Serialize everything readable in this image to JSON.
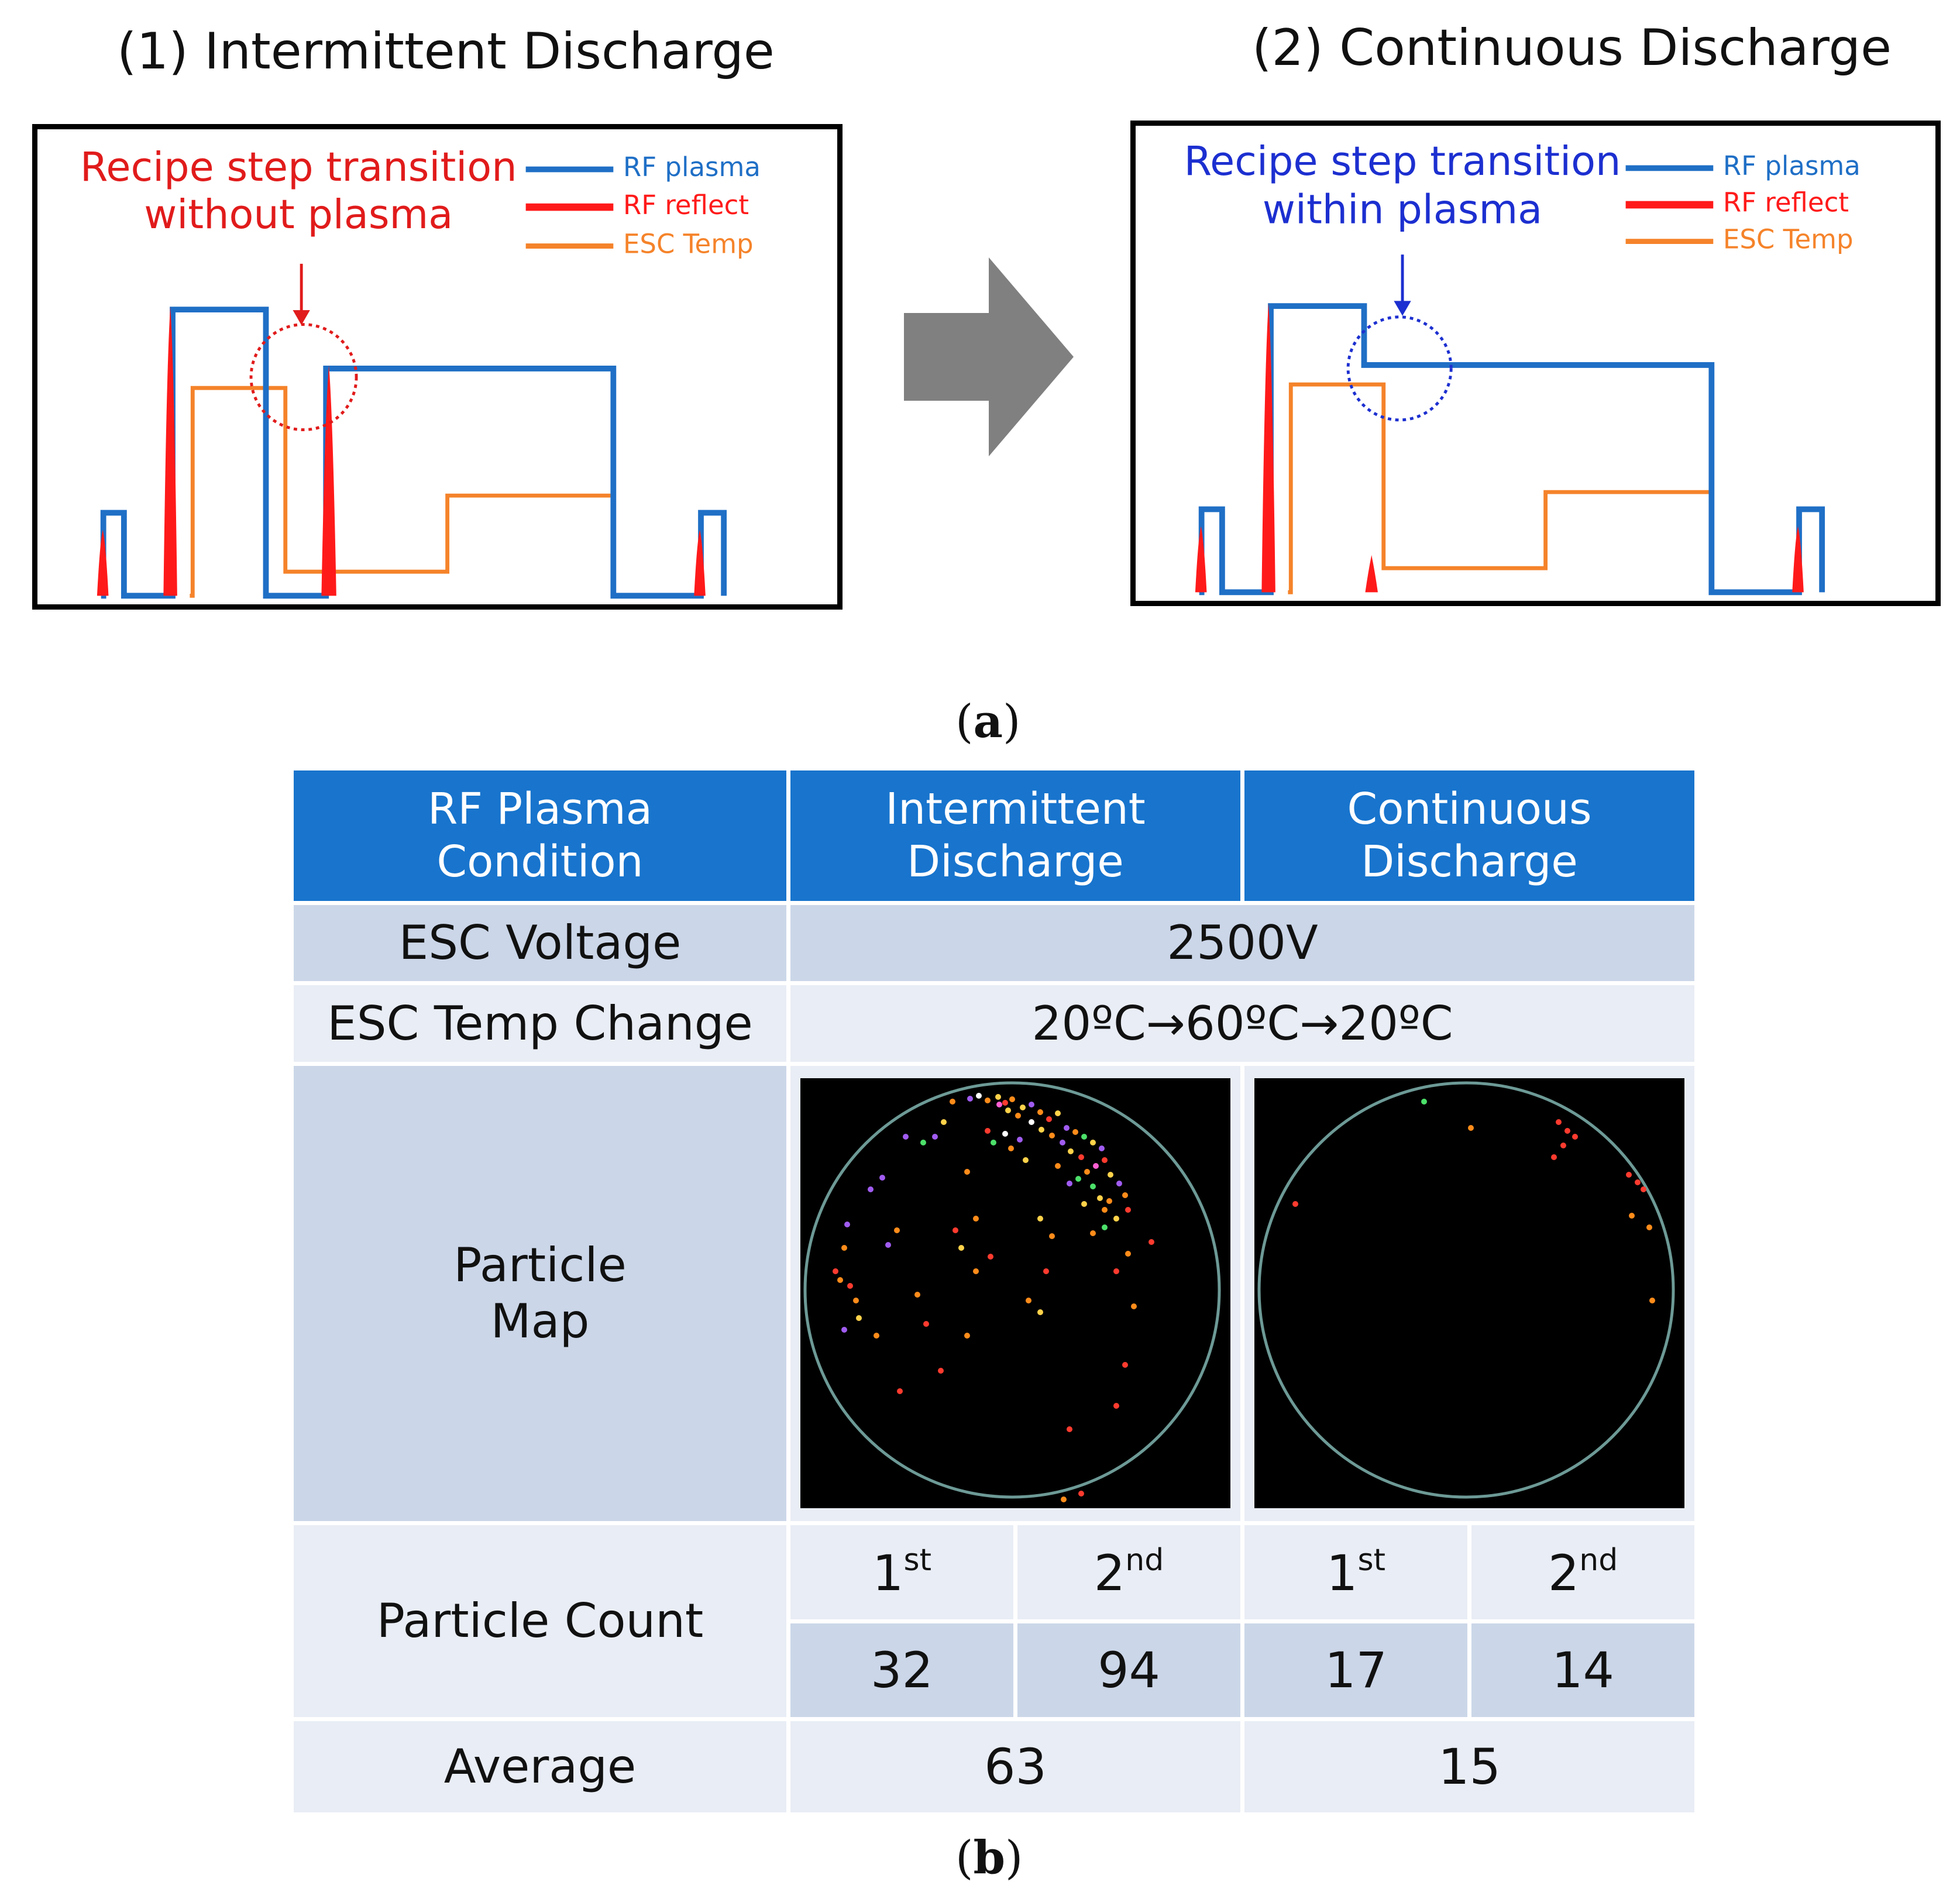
{
  "panel_a": {
    "left": {
      "title": "(1) Intermittent Discharge",
      "annotation_line1": "Recipe step transition",
      "annotation_line2": "without plasma",
      "annotation_color": "#e11b1b"
    },
    "right": {
      "title": "(2) Continuous Discharge",
      "annotation_line1": "Recipe step transition",
      "annotation_line2": "within plasma",
      "annotation_color": "#1c2fd0"
    },
    "legend": [
      {
        "label": "RF plasma",
        "color": "#1f6fc6"
      },
      {
        "label": "RF reflect",
        "color": "#ff1a1a"
      },
      {
        "label": "ESC Temp",
        "color": "#f5832a"
      }
    ],
    "caption_open": "(",
    "caption_letter": "a",
    "caption_close": ")"
  },
  "panel_b": {
    "header": {
      "condition_line1": "RF Plasma",
      "condition_line2": "Condition",
      "intermittent_line1": "Intermittent",
      "intermittent_line2": "Discharge",
      "continuous_line1": "Continuous",
      "continuous_line2": "Discharge"
    },
    "esc_voltage": {
      "label": "ESC Voltage",
      "value": "2500V"
    },
    "esc_temp_change": {
      "label": "ESC Temp Change",
      "value": "20ºC→60ºC→20ºC"
    },
    "particle_map": {
      "label_line1": "Particle",
      "label_line2": "Map"
    },
    "particle_count": {
      "label": "Particle Count",
      "runs": [
        {
          "ord_num": "1",
          "ord_suffix": "st",
          "value": "32"
        },
        {
          "ord_num": "2",
          "ord_suffix": "nd",
          "value": "94"
        },
        {
          "ord_num": "1",
          "ord_suffix": "st",
          "value": "17"
        },
        {
          "ord_num": "2",
          "ord_suffix": "nd",
          "value": "14"
        }
      ]
    },
    "average": {
      "label": "Average",
      "intermittent": "63",
      "continuous": "15"
    },
    "caption_open": "(",
    "caption_letter": "b",
    "caption_close": ")"
  }
}
